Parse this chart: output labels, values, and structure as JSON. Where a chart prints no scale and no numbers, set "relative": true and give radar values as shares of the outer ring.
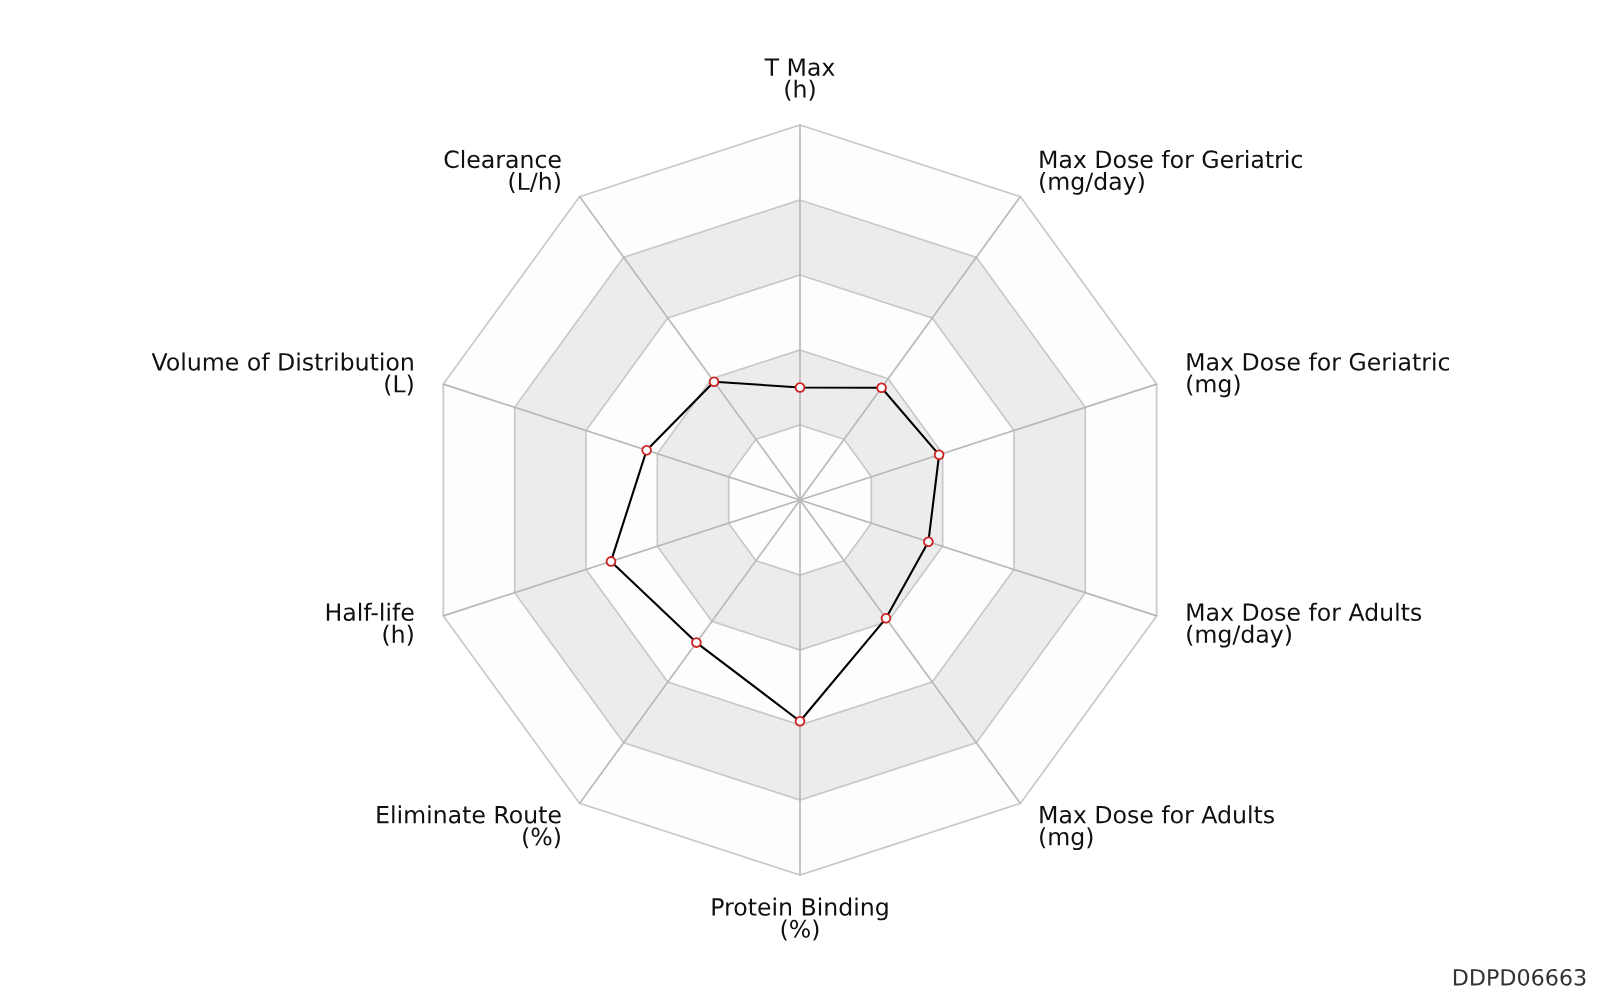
{
  "chart_data": {
    "type": "radar",
    "relative": true,
    "categories": [
      "T Max\n(h)",
      "Max Dose for Geriatric\n(mg/day)",
      "Max Dose for Geriatric\n(mg)",
      "Max Dose for Adults\n(mg/day)",
      "Max Dose for Adults\n(mg)",
      "Protein Binding\n(%)",
      "Eliminate Route\n(%)",
      "Half-life\n(h)",
      "Volume of Distribution\n(L)",
      "Clearance\n(L/h)"
    ],
    "series": [
      {
        "color": "#000000",
        "values": [
          0.3,
          0.37,
          0.39,
          0.36,
          0.39,
          0.59,
          0.47,
          0.53,
          0.43,
          0.39
        ]
      }
    ],
    "marker": "circle",
    "line_style": "solid",
    "grid": true,
    "annotations": [
      "DDPD06663"
    ]
  }
}
